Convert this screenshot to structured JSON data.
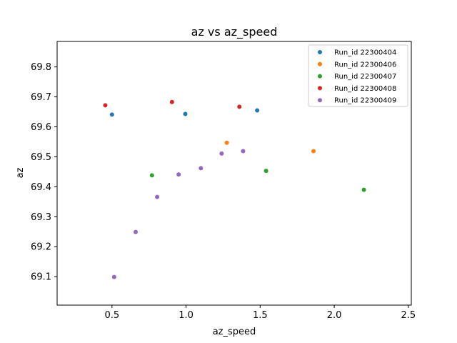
{
  "chart_data": {
    "type": "scatter",
    "title": "az vs az_speed",
    "xlabel": "az_speed",
    "ylabel": "az",
    "xlim": [
      0.13,
      2.52
    ],
    "ylim": [
      69.005,
      69.885
    ],
    "xticks": [
      0.5,
      1.0,
      1.5,
      2.0,
      2.5
    ],
    "xtick_labels": [
      "0.5",
      "1.0",
      "1.5",
      "2.0",
      "2.5"
    ],
    "yticks": [
      69.1,
      69.2,
      69.3,
      69.4,
      69.5,
      69.6,
      69.7,
      69.8
    ],
    "ytick_labels": [
      "69.1",
      "69.2",
      "69.3",
      "69.4",
      "69.5",
      "69.6",
      "69.7",
      "69.8"
    ],
    "grid": false,
    "legend_position": "top-right",
    "series": [
      {
        "name": "Run_id 22300404",
        "color": "#1f77b4",
        "points": [
          [
            0.5,
            69.641
          ],
          [
            0.995,
            69.643
          ],
          [
            1.48,
            69.655
          ]
        ]
      },
      {
        "name": "Run_id 22300406",
        "color": "#ff7f0e",
        "points": [
          [
            1.275,
            69.547
          ],
          [
            1.86,
            69.519
          ]
        ]
      },
      {
        "name": "Run_id 22300407",
        "color": "#2ca02c",
        "points": [
          [
            0.77,
            69.438
          ],
          [
            1.54,
            69.453
          ],
          [
            2.2,
            69.39
          ]
        ]
      },
      {
        "name": "Run_id 22300408",
        "color": "#d62728",
        "points": [
          [
            0.455,
            69.672
          ],
          [
            0.905,
            69.683
          ],
          [
            1.36,
            69.667
          ]
        ]
      },
      {
        "name": "Run_id 22300409",
        "color": "#9467bd",
        "points": [
          [
            0.515,
            69.099
          ],
          [
            0.66,
            69.249
          ],
          [
            0.805,
            69.366
          ],
          [
            0.95,
            69.441
          ],
          [
            1.1,
            69.462
          ],
          [
            1.24,
            69.511
          ],
          [
            1.385,
            69.519
          ]
        ]
      }
    ]
  }
}
